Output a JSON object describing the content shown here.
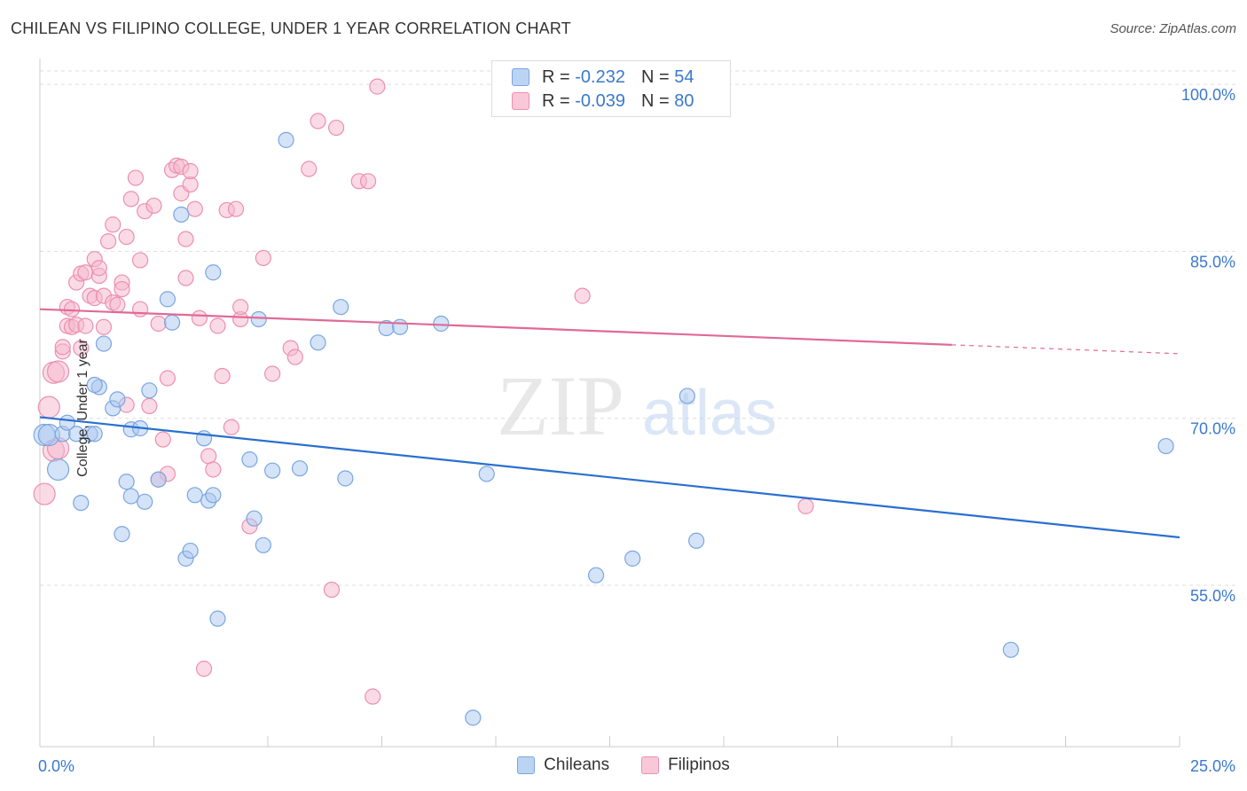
{
  "title": "CHILEAN VS FILIPINO COLLEGE, UNDER 1 YEAR CORRELATION CHART",
  "source": "Source: ZipAtlas.com",
  "watermark": {
    "zip": "ZIP",
    "atlas": "atlas"
  },
  "legend_top": [
    {
      "r_label": "R =",
      "r_value": "-0.232",
      "n_label": "N =",
      "n_value": "54"
    },
    {
      "r_label": "R =",
      "r_value": "-0.039",
      "n_label": "N =",
      "n_value": "80"
    }
  ],
  "legend_bottom": [
    {
      "label": "Chileans"
    },
    {
      "label": "Filipinos"
    }
  ],
  "colors": {
    "chileans_fill": "#aac8f0",
    "chileans_stroke": "#7aa6e0",
    "chileans_line": "#2a6fd0",
    "filipinos_fill": "#f5b8cc",
    "filipinos_stroke": "#ec8fb0",
    "filipinos_line": "#e06a96",
    "tick_label": "#3a78d0",
    "grid": "#dddddd"
  },
  "chart_data": {
    "type": "scatter",
    "title": "CHILEAN VS FILIPINO COLLEGE, UNDER 1 YEAR CORRELATION CHART",
    "xlabel": "",
    "ylabel": "College, Under 1 year",
    "xlim": [
      0,
      25
    ],
    "ylim": [
      40.5,
      102
    ],
    "x_tick_labels": [
      "0.0%",
      "25.0%"
    ],
    "y_ticks": [
      55,
      70,
      85,
      100
    ],
    "y_tick_labels": [
      "55.0%",
      "70.0%",
      "85.0%",
      "100.0%"
    ],
    "grid": "horizontal dashed",
    "legend": "top-center",
    "series": [
      {
        "name": "Chileans",
        "R": -0.232,
        "N": 54,
        "trend": {
          "x": [
            0,
            25
          ],
          "y": [
            70.1,
            59.3
          ]
        },
        "points": [
          [
            0.1,
            68.5
          ],
          [
            0.2,
            68.5
          ],
          [
            0.5,
            68.6
          ],
          [
            0.6,
            69.6
          ],
          [
            0.8,
            68.6
          ],
          [
            1.1,
            68.6
          ],
          [
            1.2,
            68.6
          ],
          [
            0.4,
            65.4
          ],
          [
            0.9,
            62.4
          ],
          [
            1.3,
            72.8
          ],
          [
            1.4,
            76.7
          ],
          [
            1.6,
            70.9
          ],
          [
            1.7,
            71.7
          ],
          [
            1.8,
            59.6
          ],
          [
            1.9,
            64.3
          ],
          [
            2.0,
            69.0
          ],
          [
            2.2,
            69.1
          ],
          [
            2.3,
            62.5
          ],
          [
            2.4,
            72.5
          ],
          [
            2.6,
            64.5
          ],
          [
            2.8,
            80.7
          ],
          [
            2.9,
            78.6
          ],
          [
            3.1,
            88.3
          ],
          [
            3.2,
            57.4
          ],
          [
            3.3,
            58.1
          ],
          [
            3.4,
            63.1
          ],
          [
            3.6,
            68.2
          ],
          [
            3.7,
            62.6
          ],
          [
            3.8,
            63.1
          ],
          [
            3.8,
            83.1
          ],
          [
            3.9,
            52.0
          ],
          [
            4.6,
            66.3
          ],
          [
            4.7,
            61.0
          ],
          [
            4.8,
            78.9
          ],
          [
            4.9,
            58.6
          ],
          [
            5.1,
            65.3
          ],
          [
            5.4,
            95.0
          ],
          [
            5.7,
            65.5
          ],
          [
            6.1,
            76.8
          ],
          [
            6.6,
            80.0
          ],
          [
            6.7,
            64.6
          ],
          [
            7.6,
            78.1
          ],
          [
            7.9,
            78.2
          ],
          [
            8.8,
            78.5
          ],
          [
            9.5,
            43.1
          ],
          [
            9.8,
            65.0
          ],
          [
            12.2,
            55.9
          ],
          [
            13.0,
            57.4
          ],
          [
            14.2,
            72.0
          ],
          [
            14.4,
            59.0
          ],
          [
            21.3,
            49.2
          ],
          [
            24.7,
            67.5
          ],
          [
            1.2,
            73.0
          ],
          [
            2.0,
            63.0
          ]
        ]
      },
      {
        "name": "Filipinos",
        "R": -0.039,
        "N": 80,
        "trend": {
          "x": [
            0,
            20
          ],
          "y": [
            79.8,
            76.6
          ]
        },
        "trend_dashed": {
          "x": [
            20,
            25
          ],
          "y": [
            76.6,
            75.8
          ]
        },
        "points": [
          [
            0.1,
            63.2
          ],
          [
            0.2,
            71.0
          ],
          [
            0.3,
            67.1
          ],
          [
            0.3,
            74.1
          ],
          [
            0.4,
            67.3
          ],
          [
            0.4,
            74.2
          ],
          [
            0.5,
            76.0
          ],
          [
            0.5,
            76.4
          ],
          [
            0.6,
            78.3
          ],
          [
            0.6,
            80.0
          ],
          [
            0.7,
            78.2
          ],
          [
            0.7,
            79.8
          ],
          [
            0.8,
            78.4
          ],
          [
            0.8,
            82.2
          ],
          [
            0.9,
            76.3
          ],
          [
            0.9,
            83.0
          ],
          [
            1.0,
            83.1
          ],
          [
            1.0,
            78.3
          ],
          [
            1.1,
            81.0
          ],
          [
            1.2,
            80.8
          ],
          [
            1.2,
            84.3
          ],
          [
            1.3,
            82.8
          ],
          [
            1.3,
            83.5
          ],
          [
            1.4,
            81.0
          ],
          [
            1.4,
            78.2
          ],
          [
            1.5,
            85.9
          ],
          [
            1.6,
            87.4
          ],
          [
            1.6,
            80.4
          ],
          [
            1.7,
            80.2
          ],
          [
            1.8,
            82.2
          ],
          [
            1.8,
            81.6
          ],
          [
            1.9,
            71.2
          ],
          [
            1.9,
            86.3
          ],
          [
            2.0,
            89.7
          ],
          [
            2.1,
            91.6
          ],
          [
            2.2,
            79.8
          ],
          [
            2.2,
            84.2
          ],
          [
            2.3,
            88.6
          ],
          [
            2.4,
            71.1
          ],
          [
            2.5,
            89.1
          ],
          [
            2.6,
            78.5
          ],
          [
            2.7,
            68.1
          ],
          [
            2.8,
            65.0
          ],
          [
            2.8,
            73.6
          ],
          [
            2.6,
            64.5
          ],
          [
            2.9,
            92.3
          ],
          [
            3.0,
            92.7
          ],
          [
            3.1,
            90.2
          ],
          [
            3.1,
            92.6
          ],
          [
            3.2,
            86.1
          ],
          [
            3.2,
            82.6
          ],
          [
            3.3,
            91.0
          ],
          [
            3.3,
            92.2
          ],
          [
            3.4,
            88.8
          ],
          [
            3.5,
            79.0
          ],
          [
            3.6,
            47.5
          ],
          [
            3.7,
            66.6
          ],
          [
            3.8,
            65.4
          ],
          [
            3.9,
            78.3
          ],
          [
            4.0,
            73.8
          ],
          [
            4.1,
            88.7
          ],
          [
            4.2,
            69.2
          ],
          [
            4.3,
            88.8
          ],
          [
            4.4,
            78.9
          ],
          [
            4.4,
            80.0
          ],
          [
            4.6,
            60.3
          ],
          [
            4.9,
            84.4
          ],
          [
            5.1,
            74.0
          ],
          [
            5.5,
            76.3
          ],
          [
            5.6,
            75.5
          ],
          [
            5.9,
            92.4
          ],
          [
            6.1,
            96.7
          ],
          [
            6.4,
            54.6
          ],
          [
            6.5,
            96.1
          ],
          [
            7.0,
            91.3
          ],
          [
            7.2,
            91.3
          ],
          [
            7.3,
            45.0
          ],
          [
            7.4,
            99.8
          ],
          [
            11.9,
            81.0
          ],
          [
            16.8,
            62.1
          ]
        ]
      }
    ]
  }
}
